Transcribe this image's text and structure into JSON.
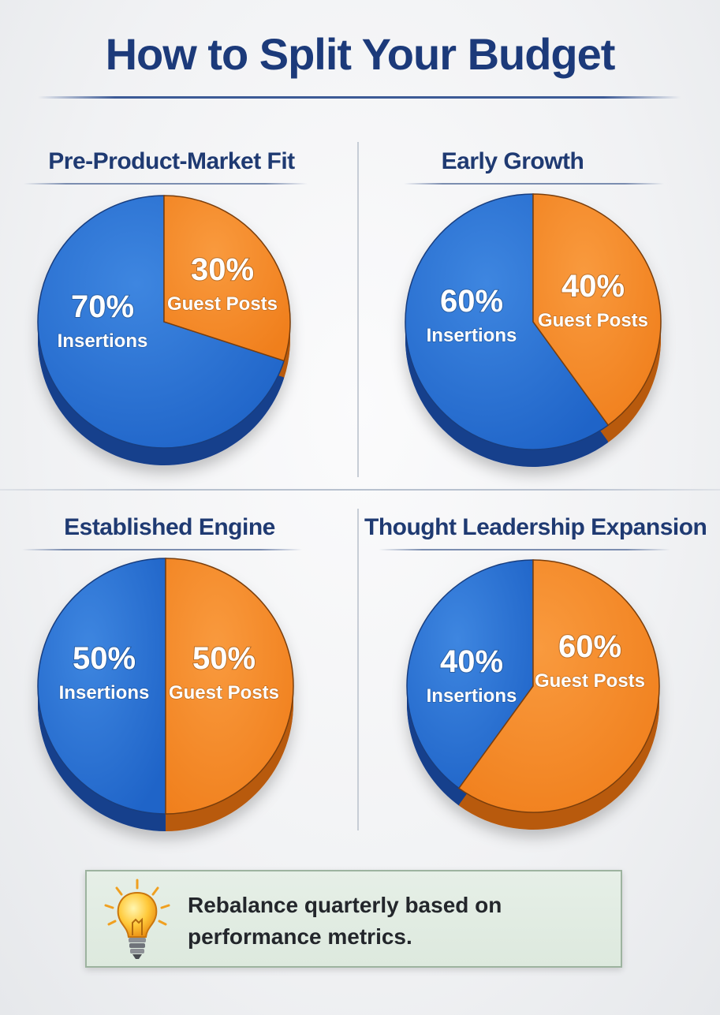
{
  "title": "How to Split Your Budget",
  "colors": {
    "insertions": "#1f64c8",
    "guest_posts": "#f07f1c",
    "title": "#1c3a7a",
    "tip_background": "#e3ede4"
  },
  "chart_data": [
    {
      "type": "pie",
      "title": "Pre-Product-Market Fit",
      "series": [
        {
          "name": "Insertions",
          "value": 70,
          "label": "70%"
        },
        {
          "name": "Guest Posts",
          "value": 30,
          "label": "30%"
        }
      ]
    },
    {
      "type": "pie",
      "title": "Early Growth",
      "series": [
        {
          "name": "Insertions",
          "value": 60,
          "label": "60%"
        },
        {
          "name": "Guest Posts",
          "value": 40,
          "label": "40%"
        }
      ]
    },
    {
      "type": "pie",
      "title": "Established Engine",
      "series": [
        {
          "name": "Insertions",
          "value": 50,
          "label": "50%"
        },
        {
          "name": "Guest Posts",
          "value": 50,
          "label": "50%"
        }
      ]
    },
    {
      "type": "pie",
      "title": "Thought Leadership Expansion",
      "series": [
        {
          "name": "Insertions",
          "value": 40,
          "label": "40%"
        },
        {
          "name": "Guest Posts",
          "value": 60,
          "label": "60%"
        }
      ]
    }
  ],
  "tip": {
    "icon": "lightbulb-icon",
    "text": "Rebalance quarterly based on performance metrics."
  }
}
